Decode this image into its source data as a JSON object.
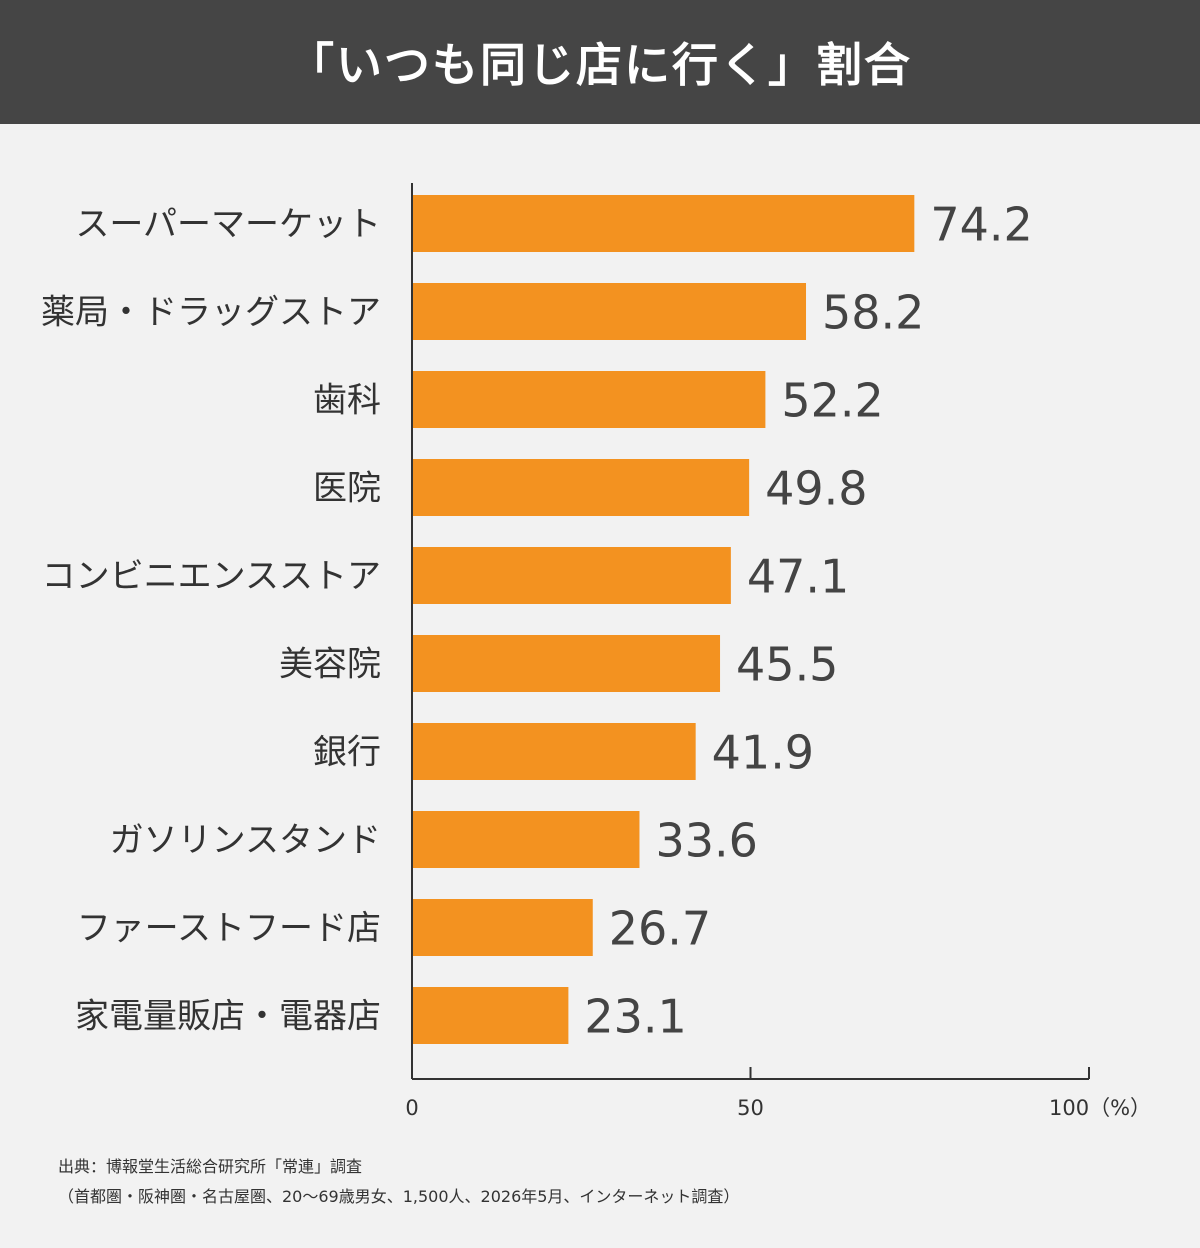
{
  "title": "「いつも同じ店に行く」割合",
  "colors": {
    "header_bg": "#454545",
    "bar": "#f39220",
    "background": "#f2f2f2"
  },
  "chart_data": {
    "type": "bar",
    "orientation": "horizontal",
    "categories": [
      "スーパーマーケット",
      "薬局・ドラッグストア",
      "歯科",
      "医院",
      "コンビニエンスストア",
      "美容院",
      "銀行",
      "ガソリンスタンド",
      "ファーストフード店",
      "家電量販店・電器店"
    ],
    "values": [
      74.2,
      58.2,
      52.2,
      49.8,
      47.1,
      45.5,
      41.9,
      33.6,
      26.7,
      23.1
    ],
    "value_labels": [
      "74.2",
      "58.2",
      "52.2",
      "49.8",
      "47.1",
      "45.5",
      "41.9",
      "33.6",
      "26.7",
      "23.1"
    ],
    "xlim": [
      0,
      100
    ],
    "xticks": [
      0,
      50,
      100
    ],
    "xtick_labels": [
      "0",
      "50",
      "100（%）"
    ],
    "grid": false,
    "legend": "none"
  },
  "notes": {
    "source": "出典：博報堂生活総合研究所「常連」調査",
    "method": "（首都圏・阪神圏・名古屋圏、20～69歳男女、1,500人、2026年5月、インターネット調査）"
  }
}
